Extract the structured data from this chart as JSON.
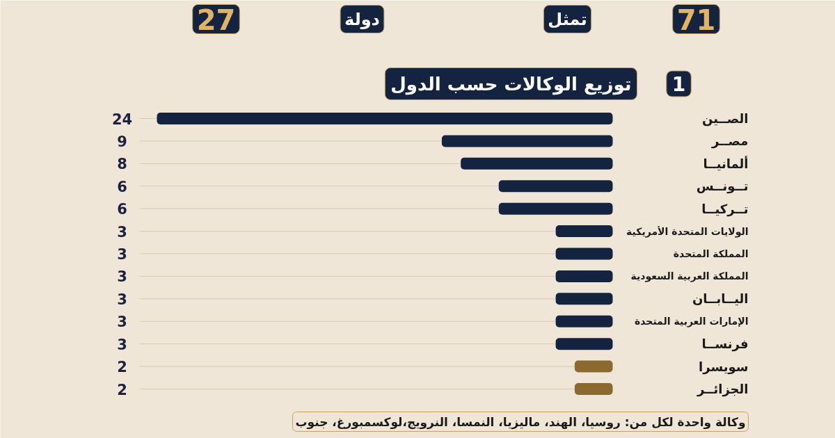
{
  "chart_data": {
    "type": "bar",
    "orientation": "horizontal",
    "title": "توزيع الوكالات حسب الدول",
    "annotations": [
      "71",
      "تمثل",
      "دولة",
      "27",
      "1",
      "وكالة واحدة لكل من: روسيا، الهند، ماليزيا، النمسا، النرويج،لوكسمبورغ، جنوب"
    ],
    "categories": [
      "الصــين",
      "مصــر",
      "ألمانيــا",
      "تــونــس",
      "تــركيــا",
      "الولايات المتحدة الأمريكية",
      "المملكة المتحدة",
      "المملكة العربية السعودية",
      "اليــابــان",
      "الإمارات العربية المتحدة",
      "فرنســا",
      "سويسرا",
      "الجزائــر"
    ],
    "values": [
      24,
      9,
      8,
      6,
      6,
      3,
      3,
      3,
      3,
      3,
      3,
      2,
      2
    ],
    "colors": [
      "#14233f",
      "#14233f",
      "#14233f",
      "#14233f",
      "#14233f",
      "#14233f",
      "#14233f",
      "#14233f",
      "#14233f",
      "#14233f",
      "#14233f",
      "#8c6a2f",
      "#8c6a2f"
    ],
    "data_labels": true,
    "grid": "y"
  }
}
